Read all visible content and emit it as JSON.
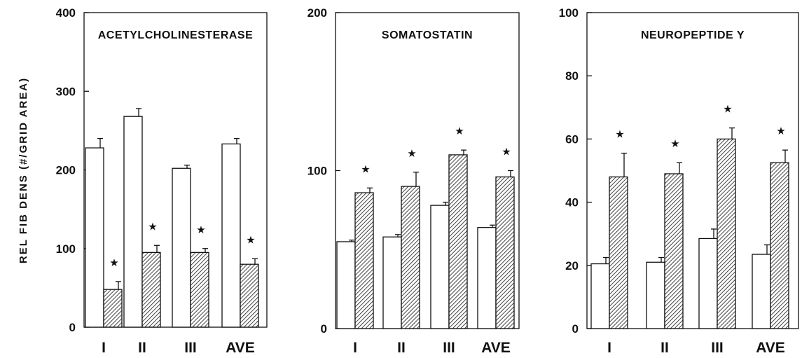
{
  "ylabel": "REL FIB DENS (#/GRID AREA)",
  "colors": {
    "axis": "#111111",
    "control_fill": "#ffffff",
    "treated_pattern": "#222222"
  },
  "chart_data": [
    {
      "type": "bar",
      "title": "ACETYLCHOLINESTERASE",
      "categories": [
        "I",
        "II",
        "III",
        "AVE"
      ],
      "ylim": [
        0,
        400
      ],
      "yticks": [
        0,
        100,
        200,
        300,
        400
      ],
      "series": [
        {
          "style": "open",
          "values": [
            228,
            268,
            202,
            233
          ],
          "errors": [
            12,
            10,
            4,
            7
          ]
        },
        {
          "style": "hatched",
          "values": [
            48,
            95,
            95,
            80
          ],
          "errors": [
            10,
            9,
            5,
            7
          ],
          "significant": [
            true,
            true,
            true,
            true
          ]
        }
      ],
      "grid": false
    },
    {
      "type": "bar",
      "title": "SOMATOSTATIN",
      "categories": [
        "I",
        "II",
        "III",
        "AVE"
      ],
      "ylim": [
        0,
        200
      ],
      "yticks": [
        0,
        100,
        200
      ],
      "series": [
        {
          "style": "open",
          "values": [
            55,
            58,
            78,
            64
          ],
          "errors": [
            1,
            1.5,
            2,
            1.5
          ]
        },
        {
          "style": "hatched",
          "values": [
            86,
            90,
            110,
            96
          ],
          "errors": [
            3,
            9,
            3,
            4
          ],
          "significant": [
            true,
            true,
            true,
            true
          ]
        }
      ],
      "grid": false
    },
    {
      "type": "bar",
      "title": "NEUROPEPTIDE  Y",
      "categories": [
        "I",
        "II",
        "III",
        "AVE"
      ],
      "ylim": [
        0,
        100
      ],
      "yticks": [
        0,
        20,
        40,
        60,
        80,
        100
      ],
      "series": [
        {
          "style": "open",
          "values": [
            20.5,
            21,
            28.5,
            23.5
          ],
          "errors": [
            2,
            1.5,
            3,
            3
          ]
        },
        {
          "style": "hatched",
          "values": [
            48,
            49,
            60,
            52.5
          ],
          "errors": [
            7.5,
            3.5,
            3.5,
            4
          ],
          "significant": [
            true,
            true,
            true,
            true
          ]
        }
      ],
      "grid": false
    }
  ]
}
